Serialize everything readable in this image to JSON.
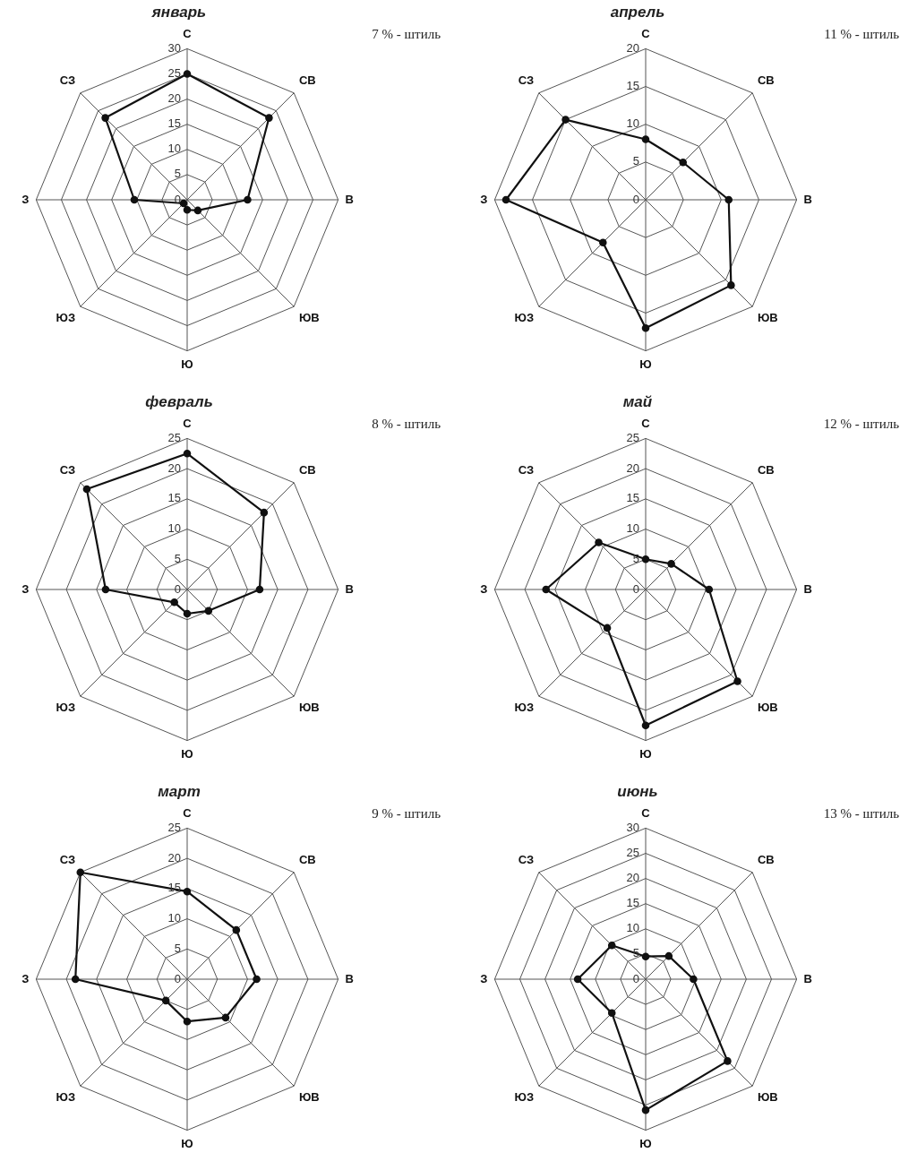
{
  "chart_data": [
    {
      "type": "radar",
      "title": "январь",
      "annotations": [
        "7 % - штиль"
      ],
      "categories": [
        "С",
        "СВ",
        "В",
        "ЮВ",
        "Ю",
        "ЮЗ",
        "З",
        "СЗ"
      ],
      "series": [
        {
          "color": "#111111",
          "values": [
            25,
            23,
            12,
            3,
            2,
            1,
            10.5,
            23
          ]
        }
      ],
      "ylim": [
        0,
        30
      ],
      "yticks": [
        0,
        5,
        10,
        15,
        20,
        25,
        30
      ],
      "grid": true,
      "marker": "circle"
    },
    {
      "type": "radar",
      "title": "апрель",
      "annotations": [
        "11 % - штиль"
      ],
      "categories": [
        "С",
        "СВ",
        "В",
        "ЮВ",
        "Ю",
        "ЮЗ",
        "З",
        "СЗ"
      ],
      "series": [
        {
          "color": "#111111",
          "values": [
            8,
            7,
            11,
            16,
            17,
            8,
            18.5,
            15
          ]
        }
      ],
      "ylim": [
        0,
        20
      ],
      "yticks": [
        0,
        5,
        10,
        15,
        20
      ],
      "grid": true,
      "marker": "circle"
    },
    {
      "type": "radar",
      "title": "февраль",
      "annotations": [
        "8 % - штиль"
      ],
      "categories": [
        "С",
        "СВ",
        "В",
        "ЮВ",
        "Ю",
        "ЮЗ",
        "З",
        "СЗ"
      ],
      "series": [
        {
          "color": "#111111",
          "values": [
            22.5,
            18,
            12,
            5,
            4,
            3,
            13.5,
            23.5
          ]
        }
      ],
      "ylim": [
        0,
        25
      ],
      "yticks": [
        0,
        5,
        10,
        15,
        20,
        25
      ],
      "grid": true,
      "marker": "circle"
    },
    {
      "type": "radar",
      "title": "май",
      "annotations": [
        "12 % - штиль"
      ],
      "categories": [
        "С",
        "СВ",
        "В",
        "ЮВ",
        "Ю",
        "ЮЗ",
        "З",
        "СЗ"
      ],
      "series": [
        {
          "color": "#111111",
          "values": [
            5,
            6,
            10.5,
            21.5,
            22.5,
            9,
            16.5,
            11
          ]
        }
      ],
      "ylim": [
        0,
        25
      ],
      "yticks": [
        0,
        5,
        10,
        15,
        20,
        25
      ],
      "grid": true,
      "marker": "circle"
    },
    {
      "type": "radar",
      "title": "март",
      "annotations": [
        "9 % - штиль"
      ],
      "categories": [
        "С",
        "СВ",
        "В",
        "ЮВ",
        "Ю",
        "ЮЗ",
        "З",
        "СЗ"
      ],
      "series": [
        {
          "color": "#111111",
          "values": [
            14.5,
            11.5,
            11.5,
            9,
            7,
            5,
            18.5,
            25
          ]
        }
      ],
      "ylim": [
        0,
        25
      ],
      "yticks": [
        0,
        5,
        10,
        15,
        20,
        25
      ],
      "grid": true,
      "marker": "circle"
    },
    {
      "type": "radar",
      "title": "июнь",
      "annotations": [
        "13 % - штиль"
      ],
      "categories": [
        "С",
        "СВ",
        "В",
        "ЮВ",
        "Ю",
        "ЮЗ",
        "З",
        "СЗ"
      ],
      "series": [
        {
          "color": "#111111",
          "values": [
            4.5,
            6.5,
            9.5,
            23,
            26,
            9.5,
            13.5,
            9.5
          ]
        }
      ],
      "ylim": [
        0,
        30
      ],
      "yticks": [
        0,
        5,
        10,
        15,
        20,
        25,
        30
      ],
      "grid": true,
      "marker": "circle"
    }
  ]
}
